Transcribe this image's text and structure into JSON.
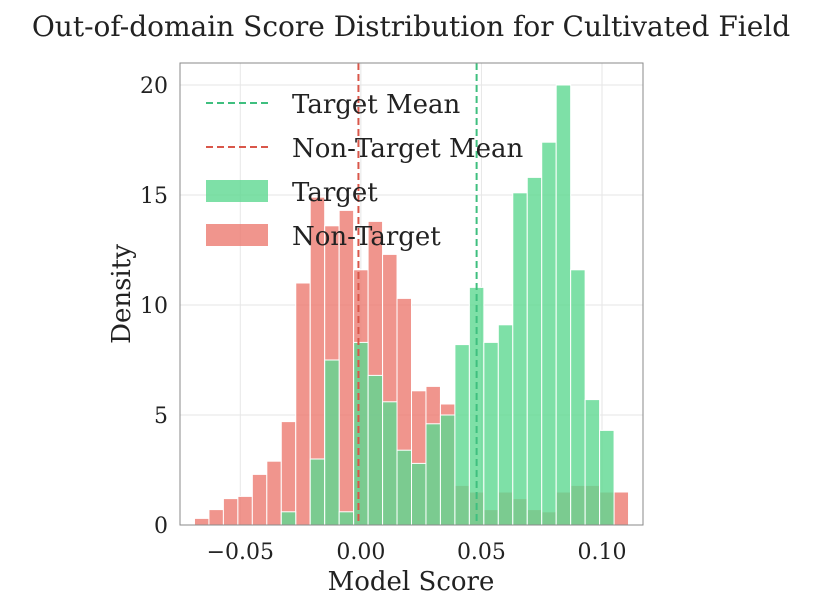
{
  "chart_data": {
    "type": "bar",
    "title": "Out-of-domain Score Distribution for Cultivated Field",
    "xlabel": "Model Score",
    "ylabel": "Density",
    "xlim": [
      -0.075,
      0.117
    ],
    "ylim": [
      0,
      21
    ],
    "xticks": [
      -0.05,
      0.0,
      0.05,
      0.1
    ],
    "xtick_labels": [
      "−0.05",
      "0.00",
      "0.05",
      "0.10"
    ],
    "yticks": [
      0,
      5,
      10,
      15,
      20
    ],
    "ytick_labels": [
      "0",
      "5",
      "10",
      "15",
      "20"
    ],
    "grid": true,
    "legend_position": "top-left",
    "bin_width": 0.006,
    "colors": {
      "target": "#5ed891",
      "non_target": "#ec7b70",
      "target_mean_line": "#3fbf7f",
      "non_target_mean_line": "#d9574a"
    },
    "legend": [
      {
        "key": "target_mean",
        "label": "Target Mean",
        "kind": "line"
      },
      {
        "key": "non_target_mean",
        "label": "Non-Target Mean",
        "kind": "line"
      },
      {
        "key": "target",
        "label": "Target",
        "kind": "patch"
      },
      {
        "key": "non_target",
        "label": "Non-Target",
        "kind": "patch"
      }
    ],
    "series": [
      {
        "key": "target",
        "name": "Target",
        "bin_starts": [
          -0.033,
          -0.021,
          -0.015,
          -0.009,
          -0.003,
          0.003,
          0.009,
          0.015,
          0.021,
          0.027,
          0.033,
          0.039,
          0.045,
          0.051,
          0.057,
          0.063,
          0.069,
          0.075,
          0.081,
          0.087,
          0.093,
          0.099
        ],
        "values": [
          0.6,
          3.0,
          7.5,
          0.6,
          8.3,
          6.8,
          5.6,
          3.4,
          2.8,
          4.6,
          5.0,
          8.2,
          10.8,
          8.3,
          9.1,
          15.1,
          15.8,
          17.4,
          20.0,
          11.6,
          5.7,
          4.3
        ]
      },
      {
        "key": "non_target",
        "name": "Non-Target",
        "bin_starts": [
          -0.069,
          -0.063,
          -0.057,
          -0.051,
          -0.045,
          -0.039,
          -0.033,
          -0.027,
          -0.021,
          -0.015,
          -0.009,
          -0.003,
          0.003,
          0.009,
          0.015,
          0.021,
          0.027,
          0.033,
          0.039,
          0.045,
          0.051,
          0.057,
          0.063,
          0.069,
          0.075,
          0.081,
          0.087,
          0.093,
          0.099,
          0.105
        ],
        "values": [
          0.3,
          0.7,
          1.2,
          1.3,
          2.3,
          2.9,
          4.7,
          11.0,
          14.9,
          13.6,
          14.3,
          11.6,
          13.8,
          12.3,
          10.3,
          6.1,
          6.3,
          5.5,
          1.8,
          1.5,
          0.7,
          1.5,
          1.2,
          0.7,
          0.6,
          1.5,
          1.8,
          1.8,
          1.5,
          1.5
        ]
      }
    ],
    "mean_lines": [
      {
        "key": "target_mean",
        "x": 0.048
      },
      {
        "key": "non_target_mean",
        "x": -0.001
      }
    ]
  }
}
